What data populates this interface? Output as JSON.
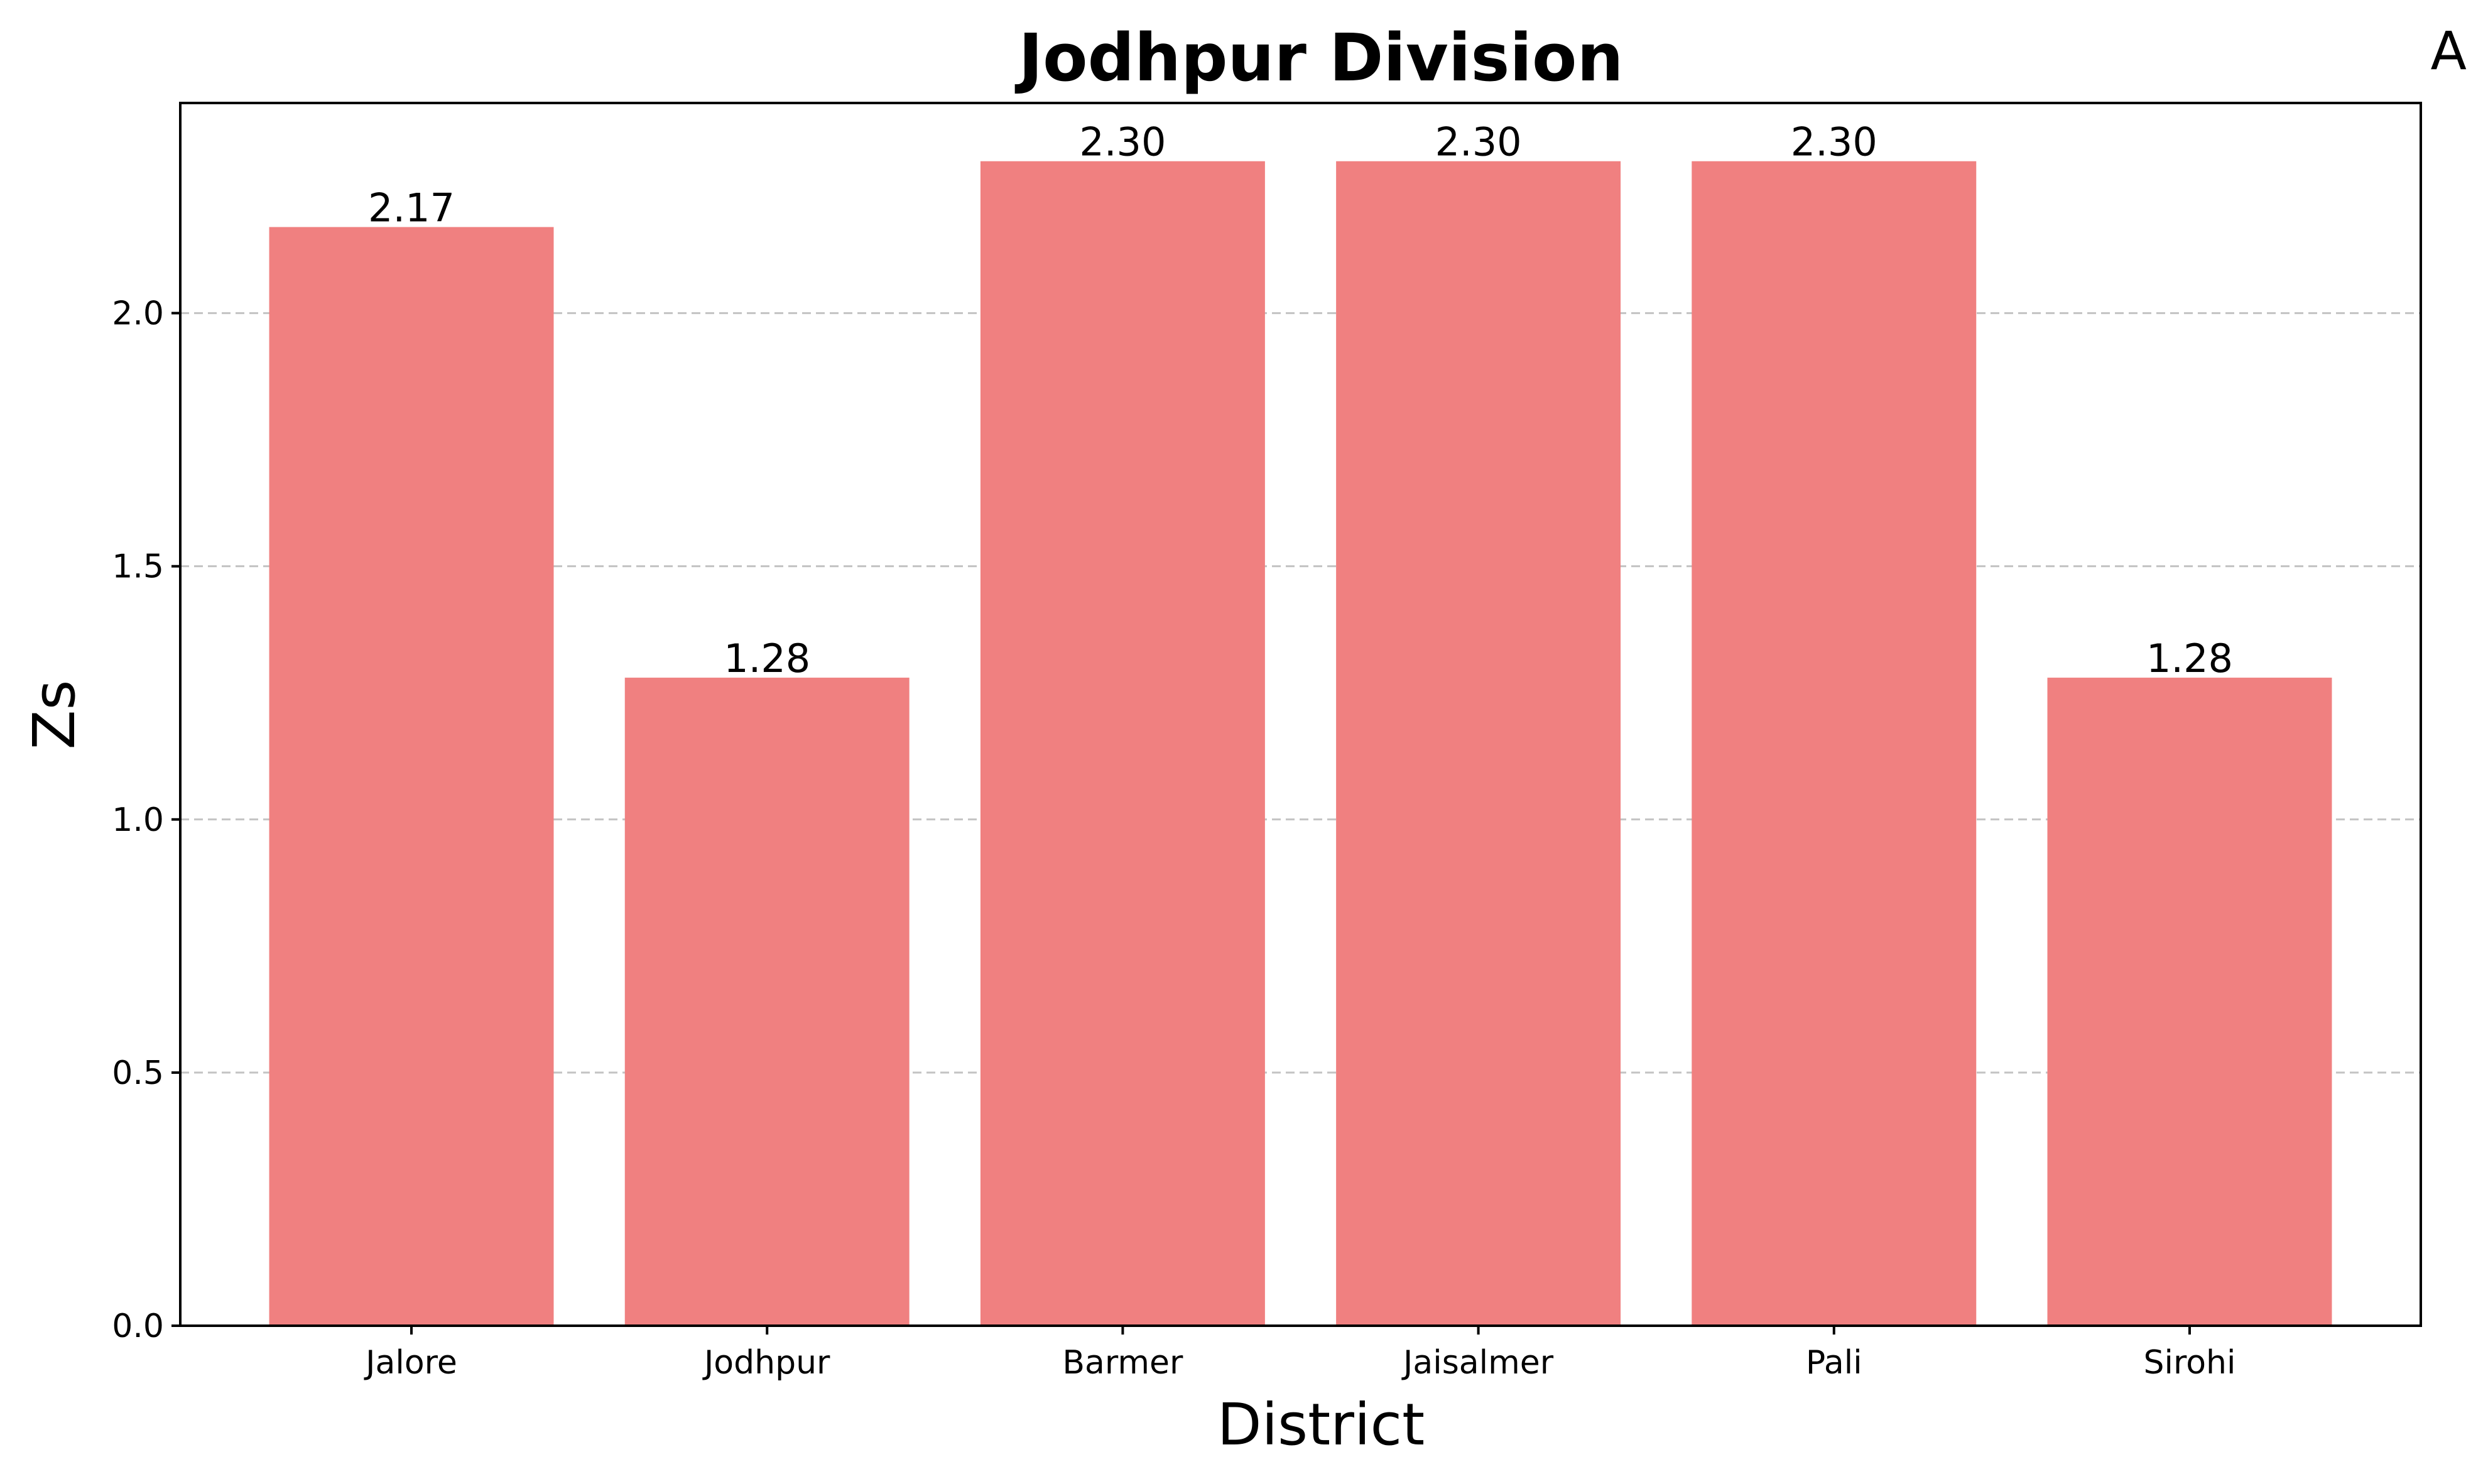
{
  "chart_data": {
    "type": "bar",
    "title": "Jodhpur Division",
    "panel_label": "A",
    "xlabel": "District",
    "ylabel": "Zs",
    "categories": [
      "Jalore",
      "Jodhpur",
      "Barmer",
      "Jaisalmer",
      "Pali",
      "Sirohi"
    ],
    "values": [
      2.17,
      1.28,
      2.3,
      2.3,
      2.3,
      1.28
    ],
    "value_labels": [
      "2.17",
      "1.28",
      "2.30",
      "2.30",
      "2.30",
      "1.28"
    ],
    "ylim": [
      0,
      2.415
    ],
    "yticks": [
      0.0,
      0.5,
      1.0,
      1.5,
      2.0
    ],
    "ytick_labels": [
      "0.0",
      "0.5",
      "1.0",
      "1.5",
      "2.0"
    ],
    "grid": "y-dashed",
    "bar_color": "#f08080"
  }
}
